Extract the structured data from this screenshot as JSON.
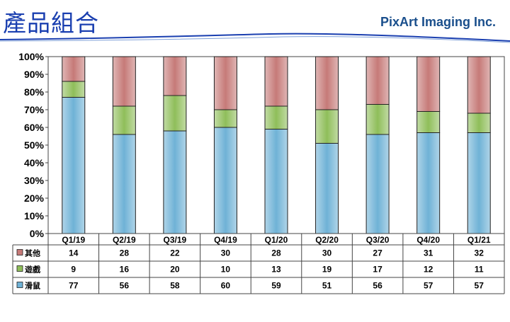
{
  "header": {
    "title": "產品組合",
    "brand": "PixArt  Imaging Inc."
  },
  "chart_data": {
    "type": "bar",
    "stacked": true,
    "percent": true,
    "categories": [
      "Q1/19",
      "Q2/19",
      "Q3/19",
      "Q4/19",
      "Q1/20",
      "Q2/20",
      "Q3/20",
      "Q4/20",
      "Q1/21"
    ],
    "y_ticks": [
      "0%",
      "10%",
      "20%",
      "30%",
      "40%",
      "50%",
      "60%",
      "70%",
      "80%",
      "90%",
      "100%"
    ],
    "ylim": [
      0,
      100
    ],
    "series": [
      {
        "name": "滑鼠",
        "values": [
          77,
          56,
          58,
          60,
          59,
          51,
          56,
          57,
          57
        ],
        "color": "#6fb2d6"
      },
      {
        "name": "遊戲",
        "values": [
          9,
          16,
          20,
          10,
          13,
          19,
          17,
          12,
          11
        ],
        "color": "#8fbe5a"
      },
      {
        "name": "其他",
        "values": [
          14,
          28,
          22,
          30,
          28,
          30,
          27,
          31,
          32
        ],
        "color": "#c67a78"
      }
    ],
    "table_rows": [
      "其他",
      "遊戲",
      "滑鼠"
    ],
    "legend": "data-table"
  }
}
